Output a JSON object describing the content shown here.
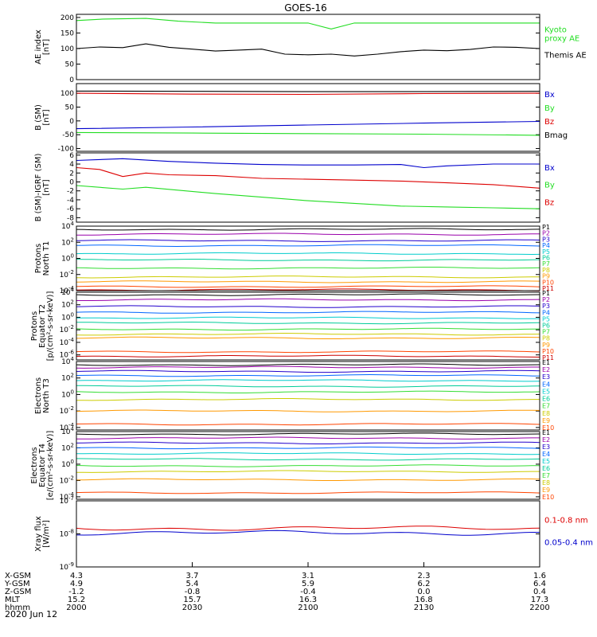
{
  "title": "GOES-16",
  "date_label": "2020 Jun 12",
  "x_axis": {
    "rows": [
      {
        "label": "X-GSM",
        "values": [
          "4.3",
          "3.7",
          "3.1",
          "2.3",
          "1.6"
        ]
      },
      {
        "label": "Y-GSM",
        "values": [
          "4.9",
          "5.4",
          "5.9",
          "6.2",
          "6.4"
        ]
      },
      {
        "label": "Z-GSM",
        "values": [
          "-1.2",
          "-0.8",
          "-0.4",
          "0.0",
          "0.4"
        ]
      },
      {
        "label": "MLT",
        "values": [
          "15.2",
          "15.7",
          "16.3",
          "16.8",
          "17.3"
        ]
      },
      {
        "label": "hhmm",
        "values": [
          "2000",
          "2030",
          "2100",
          "2130",
          "2200"
        ]
      }
    ]
  },
  "colors": {
    "black": "#000000",
    "red": "#dd0000",
    "green": "#22dd22",
    "blue": "#0000cc",
    "p": [
      "#000000",
      "#9900aa",
      "#2200cc",
      "#0066ff",
      "#00cccc",
      "#00cc99",
      "#33dd33",
      "#cccc00",
      "#ff9900",
      "#ff4400",
      "#cc0000"
    ]
  },
  "chart_data": [
    {
      "type": "line",
      "ylabel": "AE index\n[nT]",
      "ylim": [
        0,
        210
      ],
      "yticks": [
        "0",
        "50",
        "100",
        "150",
        "200"
      ],
      "legend": [
        "Kyoto\nproxy AE",
        "Themis AE"
      ],
      "series": [
        {
          "name": "Kyoto proxy AE",
          "color": "#22dd22",
          "x": [
            0,
            0.06,
            0.15,
            0.22,
            0.3,
            0.4,
            0.5,
            0.55,
            0.6,
            0.7,
            0.8,
            0.9,
            1.0
          ],
          "y": [
            190,
            195,
            197,
            188,
            182,
            182,
            182,
            163,
            182,
            182,
            182,
            182,
            182
          ]
        },
        {
          "name": "Themis AE",
          "color": "#000000",
          "x": [
            0,
            0.05,
            0.1,
            0.15,
            0.2,
            0.25,
            0.3,
            0.35,
            0.4,
            0.45,
            0.5,
            0.55,
            0.6,
            0.65,
            0.7,
            0.75,
            0.8,
            0.85,
            0.9,
            0.95,
            1.0
          ],
          "y": [
            100,
            105,
            103,
            115,
            104,
            98,
            92,
            95,
            98,
            82,
            80,
            82,
            76,
            82,
            90,
            95,
            93,
            97,
            105,
            104,
            100
          ]
        }
      ]
    },
    {
      "type": "line",
      "ylabel": "B (SM)\n[nT]",
      "ylim": [
        -110,
        135
      ],
      "yticks": [
        "-100",
        "-50",
        "0",
        "50",
        "100"
      ],
      "legend": [
        "Bx",
        "By",
        "Bz",
        "Bmag"
      ],
      "series": [
        {
          "name": "Bx",
          "color": "#0000cc",
          "x": [
            0,
            0.25,
            0.5,
            0.75,
            1.0
          ],
          "y": [
            -28,
            -22,
            -15,
            -8,
            -2
          ]
        },
        {
          "name": "By",
          "color": "#22dd22",
          "x": [
            0,
            0.25,
            0.5,
            0.75,
            1.0
          ],
          "y": [
            -42,
            -44,
            -46,
            -48,
            -52
          ]
        },
        {
          "name": "Bz",
          "color": "#dd0000",
          "x": [
            0,
            0.25,
            0.5,
            0.75,
            1.0
          ],
          "y": [
            100,
            97,
            96,
            99,
            100
          ]
        },
        {
          "name": "Bmag",
          "color": "#000000",
          "x": [
            0,
            0.25,
            0.5,
            0.75,
            1.0
          ],
          "y": [
            108,
            107,
            106,
            106,
            107
          ]
        }
      ]
    },
    {
      "type": "line",
      "ylabel": "B (SM)-IGRF (SM)\n[nT]",
      "ylim": [
        -9,
        6.5
      ],
      "yticks": [
        "-8",
        "-6",
        "-4",
        "-2",
        "0",
        "2",
        "4",
        "6"
      ],
      "legend": [
        "Bx",
        "By",
        "Bz"
      ],
      "series": [
        {
          "name": "Bx",
          "color": "#0000cc",
          "x": [
            0,
            0.1,
            0.2,
            0.3,
            0.4,
            0.5,
            0.6,
            0.7,
            0.75,
            0.8,
            0.9,
            1.0
          ],
          "y": [
            4.8,
            5.2,
            4.6,
            4.2,
            3.9,
            3.8,
            3.8,
            3.9,
            3.2,
            3.6,
            4.0,
            4.0
          ]
        },
        {
          "name": "By",
          "color": "#22dd22",
          "x": [
            0,
            0.1,
            0.15,
            0.3,
            0.4,
            0.5,
            0.6,
            0.7,
            0.8,
            0.9,
            1.0
          ],
          "y": [
            -0.8,
            -1.6,
            -1.2,
            -2.6,
            -3.4,
            -4.2,
            -4.8,
            -5.4,
            -5.6,
            -5.8,
            -6.0
          ]
        },
        {
          "name": "Bz",
          "color": "#dd0000",
          "x": [
            0,
            0.05,
            0.1,
            0.15,
            0.2,
            0.3,
            0.4,
            0.5,
            0.6,
            0.7,
            0.8,
            0.9,
            1.0
          ],
          "y": [
            3.2,
            2.8,
            1.2,
            2.0,
            1.6,
            1.4,
            0.8,
            0.6,
            0.4,
            0.2,
            -0.2,
            -0.6,
            -1.4
          ]
        }
      ]
    },
    {
      "type": "line",
      "ylabel": "Protons\nNorth T1",
      "scale": "log",
      "ylim": [
        -4,
        4
      ],
      "yticks": [
        "10^-4",
        "10^-2",
        "10^0",
        "10^2",
        "10^4"
      ],
      "legend": [
        "P1",
        "P2",
        "P3",
        "P4",
        "P5",
        "P6",
        "P7",
        "P8",
        "P9",
        "P10",
        "P11"
      ],
      "series": [
        {
          "name": "P1",
          "level": 3.6
        },
        {
          "name": "P2",
          "level": 3.0
        },
        {
          "name": "P3",
          "level": 2.2
        },
        {
          "name": "P4",
          "level": 1.6
        },
        {
          "name": "P5",
          "level": 0.6
        },
        {
          "name": "P6",
          "level": -0.2
        },
        {
          "name": "P7",
          "level": -1.2
        },
        {
          "name": "P8",
          "level": -2.3
        },
        {
          "name": "P9",
          "level": -2.9
        },
        {
          "name": "P10",
          "level": -3.5
        },
        {
          "name": "P11",
          "level": -3.9
        }
      ]
    },
    {
      "type": "line",
      "ylabel": "Protons\nEquator T2\n[p/(cm²-s-sr-keV)]",
      "scale": "log",
      "ylim": [
        -6.8,
        4
      ],
      "yticks": [
        "10^-6",
        "10^-4",
        "10^-2",
        "10^0",
        "10^2",
        "10^4"
      ],
      "legend": [
        "P1",
        "P2",
        "P3",
        "P4",
        "P5",
        "P6",
        "P7",
        "P8",
        "P9",
        "P10",
        "P11"
      ],
      "series": [
        {
          "name": "P1",
          "level": 3.6
        },
        {
          "name": "P2",
          "level": 2.8
        },
        {
          "name": "P3",
          "level": 1.7
        },
        {
          "name": "P4",
          "level": 0.8
        },
        {
          "name": "P5",
          "level": -0.1
        },
        {
          "name": "P6",
          "level": -0.9
        },
        {
          "name": "P7",
          "level": -1.9
        },
        {
          "name": "P8",
          "level": -2.7
        },
        {
          "name": "P9",
          "level": -3.3
        },
        {
          "name": "P10",
          "level": -5.5
        },
        {
          "name": "P11",
          "level": -6.2
        }
      ]
    },
    {
      "type": "line",
      "ylabel": "Electrons\nNorth T3",
      "scale": "log",
      "ylim": [
        -4.3,
        4
      ],
      "yticks": [
        "10^-4",
        "10^-2",
        "10^0",
        "10^2",
        "10^4"
      ],
      "legend": [
        "E1",
        "E2",
        "E3",
        "E4",
        "E5",
        "E6",
        "E7",
        "E8",
        "E9",
        "E10"
      ],
      "series": [
        {
          "name": "E1",
          "level": 3.6
        },
        {
          "name": "E2",
          "level": 3.3
        },
        {
          "name": "E3",
          "level": 2.8
        },
        {
          "name": "E4",
          "level": 2.3
        },
        {
          "name": "E5",
          "level": 1.7
        },
        {
          "name": "E6",
          "level": 1.0
        },
        {
          "name": "E7",
          "level": 0.3
        },
        {
          "name": "E8",
          "level": -0.6
        },
        {
          "name": "E9",
          "level": -2.0
        },
        {
          "name": "E10",
          "level": -3.6
        }
      ]
    },
    {
      "type": "line",
      "ylabel": "Electrons\nEquator T4\n[e/(cm²-s-sr-keV)]",
      "scale": "log",
      "ylim": [
        -4.3,
        4
      ],
      "yticks": [
        "10^-4",
        "10^-2",
        "10^0",
        "10^2",
        "10^4"
      ],
      "legend": [
        "E1",
        "E2",
        "E3",
        "E4",
        "E5",
        "E6",
        "E7",
        "E8",
        "E9",
        "E10"
      ],
      "series": [
        {
          "name": "E1",
          "level": 3.7
        },
        {
          "name": "E2",
          "level": 3.2
        },
        {
          "name": "E3",
          "level": 2.6
        },
        {
          "name": "E4",
          "level": 2.0
        },
        {
          "name": "E5",
          "level": 1.3
        },
        {
          "name": "E6",
          "level": 0.6
        },
        {
          "name": "E7",
          "level": -0.2
        },
        {
          "name": "E8",
          "level": -0.9
        },
        {
          "name": "E9",
          "level": -1.9
        },
        {
          "name": "E10",
          "level": -3.5
        }
      ]
    },
    {
      "type": "line",
      "ylabel": "Xray flux\n[W/m²]",
      "scale": "log",
      "ylim": [
        -9,
        -7
      ],
      "yticks": [
        "10^-9",
        "10^-8",
        "10^-7"
      ],
      "legend": [
        "0.1-0.8 nm",
        "0.05-0.4 nm"
      ],
      "series": [
        {
          "name": "0.1-0.8 nm",
          "color": "#dd0000",
          "level": -7.83
        },
        {
          "name": "0.05-0.4 nm",
          "color": "#0000cc",
          "level": -7.97
        }
      ]
    }
  ]
}
